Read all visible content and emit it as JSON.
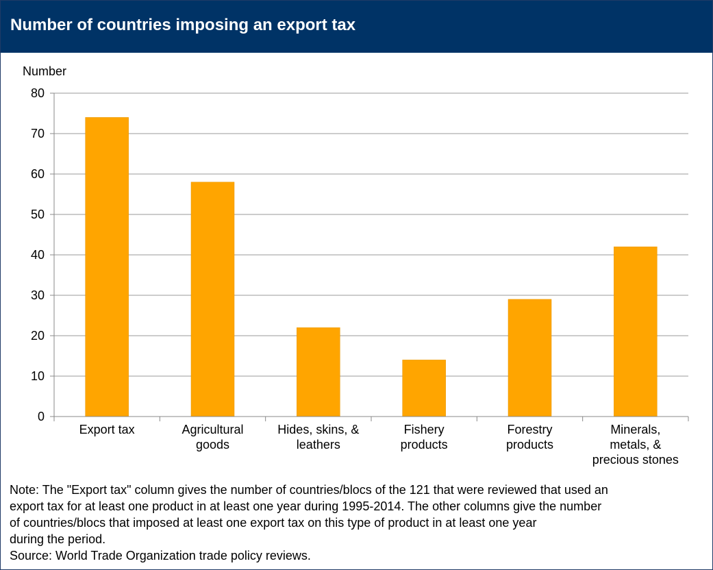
{
  "header": {
    "title": "Number of countries imposing an export tax"
  },
  "chart_data": {
    "type": "bar",
    "title": "Number of countries imposing an export tax",
    "ylabel": "Number",
    "xlabel": "",
    "categories": [
      [
        "Export tax"
      ],
      [
        "Agricultural",
        "goods"
      ],
      [
        "Hides, skins, &",
        "leathers"
      ],
      [
        "Fishery",
        "products"
      ],
      [
        "Forestry",
        "products"
      ],
      [
        "Minerals,",
        "metals, &",
        "precious stones"
      ]
    ],
    "values": [
      74,
      58,
      22,
      14,
      29,
      42
    ],
    "ylim": [
      0,
      80
    ],
    "yticks": [
      "0",
      "10",
      "20",
      "30",
      "40",
      "50",
      "60",
      "70",
      "80"
    ],
    "grid": true,
    "bar_color": "#FFA500",
    "grid_color": "#999999"
  },
  "footer": {
    "note_lines": [
      "Note: The \"Export tax\" column gives the number of countries/blocs of the 121 that were reviewed that used an",
      "export tax for at least one product in at least one year during 1995-2014. The other columns give the number",
      "of countries/blocs that imposed at least one export tax on this type of product in at least one year",
      "during the period."
    ],
    "source": "Source: World Trade Organization trade policy reviews."
  }
}
